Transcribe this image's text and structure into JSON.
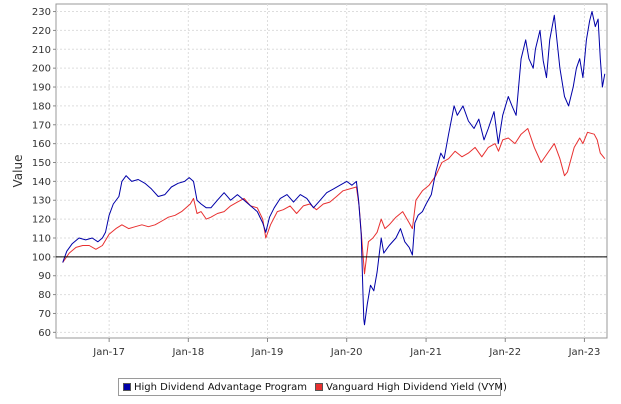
{
  "chart_data": {
    "type": "line",
    "ylabel": "Value",
    "xlabel": "",
    "ylim": [
      57,
      234
    ],
    "xlim": [
      "2016-05-01",
      "2023-04-15"
    ],
    "yticks": [
      60,
      70,
      80,
      90,
      100,
      110,
      120,
      130,
      140,
      150,
      160,
      170,
      180,
      190,
      200,
      210,
      220,
      230
    ],
    "xticks": [
      {
        "label": "Jan-17",
        "date": "2017-01-01"
      },
      {
        "label": "Jan-18",
        "date": "2018-01-01"
      },
      {
        "label": "Jan-19",
        "date": "2019-01-01"
      },
      {
        "label": "Jan-20",
        "date": "2020-01-01"
      },
      {
        "label": "Jan-21",
        "date": "2021-01-01"
      },
      {
        "label": "Jan-22",
        "date": "2022-01-01"
      },
      {
        "label": "Jan-23",
        "date": "2023-01-01"
      }
    ],
    "grid": true,
    "reference_line": 100,
    "legend_position": "bottom",
    "series": [
      {
        "name": "High Dividend Advantage Program",
        "color": "#0000a8",
        "points": [
          [
            "2016-06-01",
            97
          ],
          [
            "2016-06-20",
            103
          ],
          [
            "2016-07-15",
            107
          ],
          [
            "2016-08-15",
            110
          ],
          [
            "2016-09-15",
            109
          ],
          [
            "2016-10-15",
            110
          ],
          [
            "2016-11-10",
            108
          ],
          [
            "2016-12-01",
            110
          ],
          [
            "2016-12-15",
            113
          ],
          [
            "2017-01-01",
            122
          ],
          [
            "2017-01-20",
            128
          ],
          [
            "2017-02-15",
            132
          ],
          [
            "2017-03-01",
            140
          ],
          [
            "2017-03-20",
            143
          ],
          [
            "2017-04-15",
            140
          ],
          [
            "2017-05-15",
            141
          ],
          [
            "2017-06-15",
            139
          ],
          [
            "2017-07-15",
            136
          ],
          [
            "2017-08-15",
            132
          ],
          [
            "2017-09-15",
            133
          ],
          [
            "2017-10-15",
            137
          ],
          [
            "2017-11-15",
            139
          ],
          [
            "2017-12-15",
            140
          ],
          [
            "2018-01-05",
            142
          ],
          [
            "2018-01-25",
            140
          ],
          [
            "2018-02-10",
            130
          ],
          [
            "2018-03-01",
            128
          ],
          [
            "2018-03-25",
            126
          ],
          [
            "2018-04-15",
            126
          ],
          [
            "2018-05-15",
            130
          ],
          [
            "2018-06-15",
            134
          ],
          [
            "2018-07-15",
            130
          ],
          [
            "2018-08-15",
            133
          ],
          [
            "2018-09-15",
            130
          ],
          [
            "2018-10-15",
            127
          ],
          [
            "2018-11-15",
            124
          ],
          [
            "2018-12-10",
            118
          ],
          [
            "2018-12-24",
            113
          ],
          [
            "2019-01-10",
            121
          ],
          [
            "2019-02-01",
            126
          ],
          [
            "2019-03-01",
            131
          ],
          [
            "2019-04-01",
            133
          ],
          [
            "2019-05-01",
            129
          ],
          [
            "2019-06-01",
            133
          ],
          [
            "2019-07-01",
            131
          ],
          [
            "2019-08-01",
            126
          ],
          [
            "2019-09-01",
            130
          ],
          [
            "2019-10-01",
            134
          ],
          [
            "2019-11-01",
            136
          ],
          [
            "2019-12-01",
            138
          ],
          [
            "2020-01-01",
            140
          ],
          [
            "2020-01-25",
            138
          ],
          [
            "2020-02-15",
            140
          ],
          [
            "2020-02-25",
            130
          ],
          [
            "2020-03-08",
            112
          ],
          [
            "2020-03-16",
            80
          ],
          [
            "2020-03-20",
            67
          ],
          [
            "2020-03-23",
            64
          ],
          [
            "2020-04-05",
            75
          ],
          [
            "2020-04-20",
            85
          ],
          [
            "2020-05-05",
            82
          ],
          [
            "2020-05-20",
            92
          ],
          [
            "2020-06-08",
            110
          ],
          [
            "2020-06-20",
            102
          ],
          [
            "2020-07-15",
            106
          ],
          [
            "2020-08-15",
            110
          ],
          [
            "2020-09-05",
            115
          ],
          [
            "2020-09-25",
            108
          ],
          [
            "2020-10-15",
            105
          ],
          [
            "2020-10-30",
            101
          ],
          [
            "2020-11-10",
            118
          ],
          [
            "2020-11-25",
            122
          ],
          [
            "2020-12-15",
            124
          ],
          [
            "2021-01-01",
            128
          ],
          [
            "2021-01-25",
            133
          ],
          [
            "2021-02-15",
            145
          ],
          [
            "2021-03-10",
            155
          ],
          [
            "2021-03-25",
            152
          ],
          [
            "2021-04-15",
            165
          ],
          [
            "2021-05-10",
            180
          ],
          [
            "2021-05-25",
            175
          ],
          [
            "2021-06-20",
            180
          ],
          [
            "2021-07-15",
            172
          ],
          [
            "2021-08-10",
            168
          ],
          [
            "2021-09-01",
            173
          ],
          [
            "2021-09-25",
            162
          ],
          [
            "2021-10-15",
            168
          ],
          [
            "2021-11-10",
            177
          ],
          [
            "2021-11-30",
            160
          ],
          [
            "2021-12-20",
            175
          ],
          [
            "2022-01-15",
            185
          ],
          [
            "2022-02-01",
            180
          ],
          [
            "2022-02-20",
            175
          ],
          [
            "2022-03-15",
            205
          ],
          [
            "2022-04-05",
            215
          ],
          [
            "2022-04-20",
            205
          ],
          [
            "2022-05-10",
            200
          ],
          [
            "2022-05-20",
            210
          ],
          [
            "2022-06-10",
            220
          ],
          [
            "2022-06-25",
            204
          ],
          [
            "2022-07-10",
            195
          ],
          [
            "2022-07-25",
            215
          ],
          [
            "2022-08-15",
            228
          ],
          [
            "2022-09-10",
            200
          ],
          [
            "2022-10-01",
            185
          ],
          [
            "2022-10-20",
            180
          ],
          [
            "2022-11-10",
            190
          ],
          [
            "2022-11-25",
            200
          ],
          [
            "2022-12-10",
            205
          ],
          [
            "2022-12-25",
            195
          ],
          [
            "2023-01-10",
            215
          ],
          [
            "2023-01-25",
            225
          ],
          [
            "2023-02-05",
            230
          ],
          [
            "2023-02-20",
            222
          ],
          [
            "2023-03-05",
            226
          ],
          [
            "2023-03-15",
            205
          ],
          [
            "2023-03-25",
            190
          ],
          [
            "2023-04-05",
            197
          ]
        ]
      },
      {
        "name": "Vanguard High Dividend Yield (VYM)",
        "color": "#e83030",
        "points": [
          [
            "2016-06-01",
            97
          ],
          [
            "2016-07-01",
            102
          ],
          [
            "2016-08-01",
            105
          ],
          [
            "2016-09-01",
            106
          ],
          [
            "2016-10-01",
            106
          ],
          [
            "2016-11-01",
            104
          ],
          [
            "2016-12-01",
            106
          ],
          [
            "2017-01-01",
            112
          ],
          [
            "2017-02-01",
            115
          ],
          [
            "2017-03-01",
            117
          ],
          [
            "2017-04-01",
            115
          ],
          [
            "2017-05-01",
            116
          ],
          [
            "2017-06-01",
            117
          ],
          [
            "2017-07-01",
            116
          ],
          [
            "2017-08-01",
            117
          ],
          [
            "2017-09-01",
            119
          ],
          [
            "2017-10-01",
            121
          ],
          [
            "2017-11-01",
            122
          ],
          [
            "2017-12-01",
            124
          ],
          [
            "2018-01-10",
            128
          ],
          [
            "2018-01-25",
            131
          ],
          [
            "2018-02-10",
            123
          ],
          [
            "2018-03-01",
            124
          ],
          [
            "2018-03-25",
            120
          ],
          [
            "2018-04-15",
            121
          ],
          [
            "2018-05-15",
            123
          ],
          [
            "2018-06-15",
            124
          ],
          [
            "2018-07-15",
            127
          ],
          [
            "2018-08-15",
            129
          ],
          [
            "2018-09-15",
            131
          ],
          [
            "2018-10-15",
            127
          ],
          [
            "2018-11-15",
            126
          ],
          [
            "2018-12-10",
            120
          ],
          [
            "2018-12-24",
            110
          ],
          [
            "2019-01-15",
            117
          ],
          [
            "2019-02-15",
            124
          ],
          [
            "2019-03-15",
            125
          ],
          [
            "2019-04-15",
            127
          ],
          [
            "2019-05-15",
            123
          ],
          [
            "2019-06-15",
            127
          ],
          [
            "2019-07-15",
            128
          ],
          [
            "2019-08-15",
            125
          ],
          [
            "2019-09-15",
            128
          ],
          [
            "2019-10-15",
            129
          ],
          [
            "2019-11-15",
            132
          ],
          [
            "2019-12-15",
            135
          ],
          [
            "2020-01-15",
            136
          ],
          [
            "2020-02-15",
            137
          ],
          [
            "2020-02-27",
            127
          ],
          [
            "2020-03-10",
            110
          ],
          [
            "2020-03-23",
            91
          ],
          [
            "2020-04-10",
            108
          ],
          [
            "2020-05-01",
            110
          ],
          [
            "2020-05-20",
            113
          ],
          [
            "2020-06-08",
            120
          ],
          [
            "2020-06-25",
            115
          ],
          [
            "2020-07-15",
            117
          ],
          [
            "2020-08-15",
            121
          ],
          [
            "2020-09-15",
            124
          ],
          [
            "2020-10-15",
            118
          ],
          [
            "2020-10-30",
            115
          ],
          [
            "2020-11-15",
            130
          ],
          [
            "2020-12-15",
            135
          ],
          [
            "2021-01-15",
            138
          ],
          [
            "2021-02-15",
            143
          ],
          [
            "2021-03-15",
            150
          ],
          [
            "2021-04-15",
            152
          ],
          [
            "2021-05-15",
            156
          ],
          [
            "2021-06-15",
            153
          ],
          [
            "2021-07-15",
            155
          ],
          [
            "2021-08-15",
            158
          ],
          [
            "2021-09-15",
            153
          ],
          [
            "2021-10-15",
            158
          ],
          [
            "2021-11-15",
            160
          ],
          [
            "2021-12-01",
            156
          ],
          [
            "2021-12-20",
            162
          ],
          [
            "2022-01-15",
            163
          ],
          [
            "2022-02-15",
            160
          ],
          [
            "2022-03-15",
            165
          ],
          [
            "2022-04-15",
            168
          ],
          [
            "2022-05-15",
            158
          ],
          [
            "2022-06-15",
            150
          ],
          [
            "2022-07-15",
            155
          ],
          [
            "2022-08-15",
            160
          ],
          [
            "2022-09-10",
            152
          ],
          [
            "2022-10-01",
            143
          ],
          [
            "2022-10-15",
            145
          ],
          [
            "2022-11-15",
            158
          ],
          [
            "2022-12-10",
            163
          ],
          [
            "2022-12-25",
            160
          ],
          [
            "2023-01-15",
            166
          ],
          [
            "2023-02-15",
            165
          ],
          [
            "2023-03-01",
            162
          ],
          [
            "2023-03-15",
            155
          ],
          [
            "2023-04-05",
            152
          ]
        ]
      }
    ]
  }
}
